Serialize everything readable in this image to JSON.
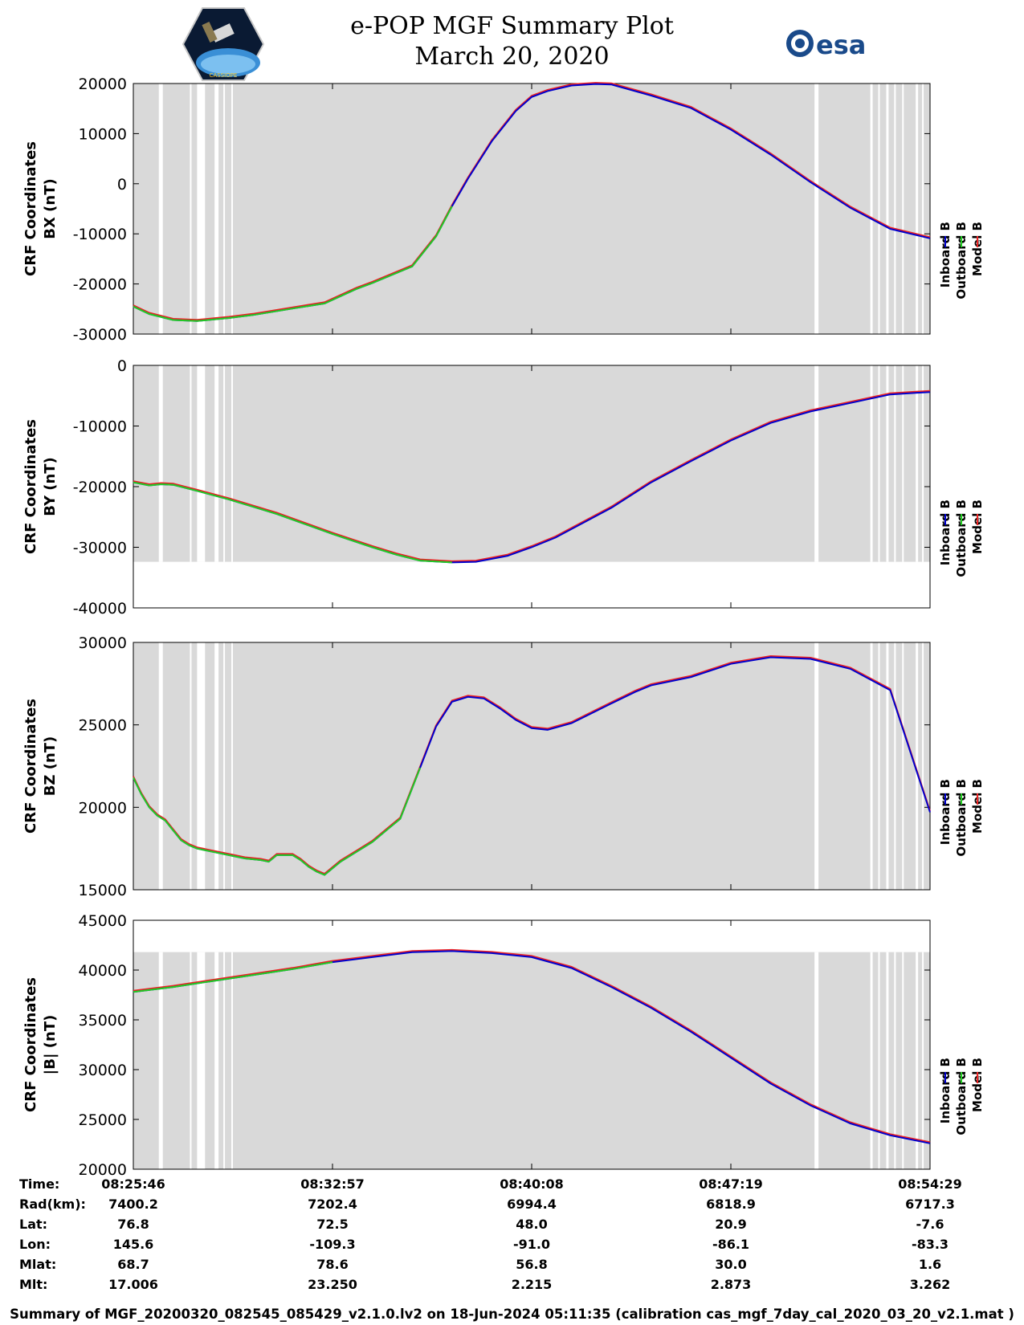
{
  "header": {
    "title": "e-POP MGF Summary Plot",
    "date": "March 20, 2020",
    "left_logo_name": "cassiope-logo",
    "left_logo_text": "CASSIOPE",
    "right_logo_text": "esa"
  },
  "legend": {
    "labels": [
      "Inboard B",
      "Outboard B",
      "Model B"
    ],
    "colors": [
      "#0000cc",
      "#22cc22",
      "#ee2222"
    ]
  },
  "colors": {
    "inboard": "#0000cc",
    "outboard": "#22cc22",
    "model": "#ee2222",
    "gap_shading": "#d9d9d9"
  },
  "chart_data": [
    {
      "type": "line",
      "id": "bx",
      "ylabel_line1": "CRF Coordinates",
      "ylabel_line2": "BX (nT)",
      "ylim": [
        -30000,
        20000
      ],
      "yticks": [
        20000,
        10000,
        0,
        -10000,
        -20000,
        -30000
      ],
      "ytick_labels": [
        "20000",
        "10000",
        "0",
        "-10000",
        "-20000",
        "-30000"
      ],
      "shade_ylim_top": 20000,
      "green_until_x": 0.41,
      "x": [
        0,
        0.02,
        0.05,
        0.08,
        0.1,
        0.12,
        0.15,
        0.2,
        0.24,
        0.28,
        0.3,
        0.35,
        0.38,
        0.4,
        0.42,
        0.45,
        0.48,
        0.5,
        0.52,
        0.55,
        0.58,
        0.6,
        0.65,
        0.7,
        0.75,
        0.8,
        0.85,
        0.9,
        0.95,
        1.0
      ],
      "y": [
        -24500,
        -26000,
        -27200,
        -27400,
        -27100,
        -26800,
        -26200,
        -24900,
        -23900,
        -21000,
        -19800,
        -16500,
        -10500,
        -4500,
        1000,
        8500,
        14500,
        17300,
        18500,
        19600,
        19900,
        19800,
        17600,
        15100,
        10800,
        5800,
        300,
        -4800,
        -9000,
        -10900
      ]
    },
    {
      "type": "line",
      "id": "by",
      "ylabel_line1": "CRF Coordinates",
      "ylabel_line2": "BY (nT)",
      "ylim": [
        -40000,
        0
      ],
      "yticks": [
        0,
        -10000,
        -20000,
        -30000,
        -40000
      ],
      "ytick_labels": [
        "0",
        "-10000",
        "-20000",
        "-30000",
        "-40000"
      ],
      "shade_ylim_bottom": -32400,
      "green_until_x": 0.4,
      "x": [
        0,
        0.02,
        0.035,
        0.05,
        0.08,
        0.12,
        0.18,
        0.25,
        0.3,
        0.33,
        0.36,
        0.4,
        0.43,
        0.47,
        0.5,
        0.53,
        0.6,
        0.65,
        0.7,
        0.75,
        0.8,
        0.85,
        0.9,
        0.95,
        1.0
      ],
      "y": [
        -19300,
        -19800,
        -19600,
        -19700,
        -20700,
        -22100,
        -24500,
        -27800,
        -30000,
        -31200,
        -32200,
        -32500,
        -32400,
        -31400,
        -30000,
        -28400,
        -23500,
        -19300,
        -15800,
        -12400,
        -9500,
        -7600,
        -6200,
        -4800,
        -4400
      ]
    },
    {
      "type": "line",
      "id": "bz",
      "ylabel_line1": "CRF Coordinates",
      "ylabel_line2": "BZ (nT)",
      "ylim": [
        15000,
        30000
      ],
      "yticks": [
        30000,
        25000,
        20000,
        15000
      ],
      "ytick_labels": [
        "30000",
        "25000",
        "20000",
        "15000"
      ],
      "green_until_x": 0.36,
      "x": [
        0,
        0.01,
        0.02,
        0.03,
        0.04,
        0.05,
        0.06,
        0.07,
        0.08,
        0.1,
        0.12,
        0.14,
        0.16,
        0.17,
        0.175,
        0.18,
        0.19,
        0.2,
        0.21,
        0.22,
        0.23,
        0.24,
        0.26,
        0.28,
        0.3,
        0.32,
        0.335,
        0.36,
        0.38,
        0.4,
        0.42,
        0.44,
        0.46,
        0.48,
        0.5,
        0.52,
        0.55,
        0.6,
        0.63,
        0.65,
        0.7,
        0.75,
        0.8,
        0.85,
        0.9,
        0.95,
        1.0
      ],
      "y": [
        21800,
        20800,
        20000,
        19500,
        19200,
        18600,
        18000,
        17700,
        17500,
        17300,
        17100,
        16900,
        16800,
        16700,
        16900,
        17100,
        17100,
        17100,
        16800,
        16400,
        16100,
        15900,
        16700,
        17300,
        17900,
        18700,
        19300,
        22400,
        24900,
        26400,
        26700,
        26600,
        26000,
        25300,
        24800,
        24700,
        25100,
        26300,
        27000,
        27400,
        27900,
        28700,
        29100,
        29000,
        28400,
        27100,
        19700
      ]
    },
    {
      "type": "line",
      "id": "bmag",
      "ylabel_line1": "CRF Coordinates",
      "ylabel_line2": "|B| (nT)",
      "ylim": [
        20000,
        45000
      ],
      "yticks": [
        45000,
        40000,
        35000,
        30000,
        25000,
        20000
      ],
      "ytick_labels": [
        "45000",
        "40000",
        "35000",
        "30000",
        "25000",
        "20000"
      ],
      "shade_ylim_top": 41800,
      "green_until_x": 0.29,
      "x": [
        0,
        0.05,
        0.1,
        0.15,
        0.2,
        0.25,
        0.3,
        0.35,
        0.4,
        0.45,
        0.5,
        0.55,
        0.6,
        0.65,
        0.7,
        0.75,
        0.8,
        0.85,
        0.9,
        0.95,
        1.0
      ],
      "y": [
        37800,
        38300,
        38900,
        39500,
        40100,
        40800,
        41300,
        41800,
        41900,
        41700,
        41300,
        40200,
        38300,
        36200,
        33800,
        31200,
        28600,
        26400,
        24600,
        23400,
        22600
      ]
    }
  ],
  "gap_bands": [
    [
      0.032,
      0.037
    ],
    [
      0.071,
      0.073
    ],
    [
      0.08,
      0.09
    ],
    [
      0.102,
      0.107
    ],
    [
      0.113,
      0.115
    ],
    [
      0.123,
      0.125
    ],
    [
      0.855,
      0.86
    ],
    [
      0.925,
      0.928
    ],
    [
      0.935,
      0.937
    ],
    [
      0.945,
      0.948
    ],
    [
      0.955,
      0.957
    ],
    [
      0.965,
      0.967
    ],
    [
      0.982,
      0.985
    ],
    [
      0.99,
      0.992
    ]
  ],
  "x_ticks": [
    "08:25:46",
    "08:32:57",
    "08:40:08",
    "08:47:19",
    "08:54:29"
  ],
  "ephemeris": {
    "row_labels": [
      "Time:",
      "Rad(km):",
      "Lat:",
      "Lon:",
      "Mlat:",
      "Mlt:"
    ],
    "rows": [
      [
        "08:25:46",
        "08:32:57",
        "08:40:08",
        "08:47:19",
        "08:54:29"
      ],
      [
        "7400.2",
        "7202.4",
        "6994.4",
        "6818.9",
        "6717.3"
      ],
      [
        "76.8",
        "72.5",
        "48.0",
        "20.9",
        "-7.6"
      ],
      [
        "145.6",
        "-109.3",
        "-91.0",
        "-86.1",
        "-83.3"
      ],
      [
        "68.7",
        "78.6",
        "56.8",
        "30.0",
        "1.6"
      ],
      [
        "17.006",
        "23.250",
        "2.215",
        "2.873",
        "3.262"
      ]
    ]
  },
  "footer": "Summary of MGF_20200320_082545_085429_v2.1.0.lv2 on 18-Jun-2024 05:11:35 (calibration cas_mgf_7day_cal_2020_03_20_v2.1.mat )"
}
